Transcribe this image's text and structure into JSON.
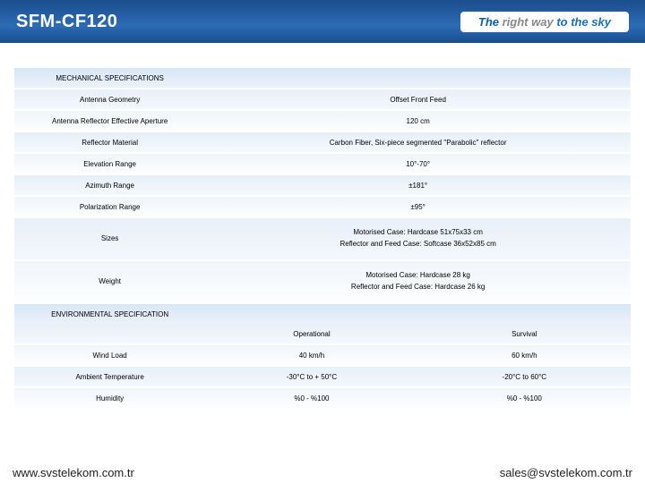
{
  "header": {
    "title": "SFM-CF120",
    "tag1": "The",
    "tag2": " right way",
    "tag3": " to the sky"
  },
  "sections": {
    "mech": "MECHANICAL SPECIFICATIONS",
    "env": "ENVIRONMENTAL SPECIFICATION"
  },
  "rows": {
    "r1l": "Antenna Geometry",
    "r1v": "Offset Front Feed",
    "r2l": "Antenna Reflector Effective Aperture",
    "r2v": "120 cm",
    "r3l": "Reflector Material",
    "r3v": "Carbon Fiber, Six-piece segmented \"Parabolic\" reflector",
    "r4l": "Elevation Range",
    "r4v": "10°-70°",
    "r5l": "Azimuth Range",
    "r5v": "±181°",
    "r6l": "Polarization Range",
    "r6v": "±95°",
    "r7l": "Sizes",
    "r7v": "Motorised Case: Hardcase 51x75x33 cm\nReflector and Feed Case: Softcase 36x52x85  cm",
    "r8l": "Weight",
    "r8v": "Motorised Case: Hardcase 28 kg\nReflector and Feed Case: Hardcase 26 kg",
    "e0a": "Operational",
    "e0b": "Survival",
    "e1l": "Wind Load",
    "e1a": "40 km/h",
    "e1b": "60 km/h",
    "e2l": "Ambient Temperature",
    "e2a": "-30°C to + 50°C",
    "e2b": "-20°C to 60°C",
    "e3l": "Humidity",
    "e3a": "%0 - %100",
    "e3b": "%0 - %100"
  },
  "footer": {
    "left": "www.svstelekom.com.tr",
    "right": "sales@svstelekom.com.tr"
  },
  "colors": {
    "header_bg": "#1a4d8c",
    "row_even": "#e7eff8",
    "row_odd": "#f0f5fa"
  }
}
